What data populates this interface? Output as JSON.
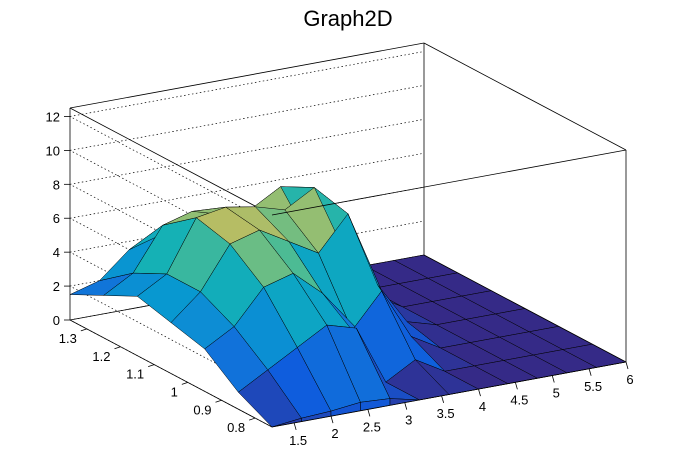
{
  "chart_data": {
    "type": "surface",
    "title": "Graph2D",
    "x_axis": {
      "range": [
        1.2,
        6.0
      ],
      "ticks": [
        "1.5",
        "2",
        "2.5",
        "3",
        "3.5",
        "4",
        "4.5",
        "5",
        "5.5",
        "6"
      ]
    },
    "y_axis": {
      "range": [
        0.75,
        1.35
      ],
      "ticks": [
        "0.8",
        "0.9",
        "1",
        "1.1",
        "1.2",
        "1.3"
      ]
    },
    "z_axis": {
      "range": [
        0,
        12.5
      ],
      "ticks": [
        "0",
        "2",
        "4",
        "6",
        "8",
        "10",
        "12"
      ]
    },
    "grid": true,
    "colormap": "parula",
    "surface_description_values": {
      "x_grid": [
        1.2,
        1.6,
        2.0,
        2.4,
        2.8,
        3.2,
        3.6,
        4.0,
        4.4,
        4.8,
        5.2,
        5.6,
        6.0
      ],
      "y_grid": [
        0.75,
        0.85,
        0.95,
        1.05,
        1.15,
        1.25,
        1.35
      ],
      "z": [
        [
          0.0,
          0.2,
          0.3,
          0.5,
          0.4,
          0.0,
          0.0,
          0.0,
          0.0,
          0.0,
          0.0,
          0.0,
          0.0
        ],
        [
          1.0,
          2.0,
          3.0,
          4.0,
          3.5,
          0.0,
          1.0,
          0.0,
          0.0,
          0.0,
          0.0,
          0.0,
          0.0
        ],
        [
          2.5,
          3.5,
          5.5,
          6.0,
          4.5,
          2.0,
          4.0,
          1.0,
          0.0,
          0.0,
          0.0,
          0.0,
          0.0
        ],
        [
          3.0,
          4.5,
          7.0,
          7.5,
          6.5,
          5.5,
          7.5,
          3.0,
          0.5,
          0.0,
          0.0,
          0.0,
          0.0
        ],
        [
          3.5,
          4.5,
          7.5,
          7.8,
          7.5,
          7.0,
          8.0,
          4.0,
          1.0,
          0.0,
          0.0,
          0.0,
          0.0
        ],
        [
          2.5,
          3.5,
          6.0,
          6.5,
          6.0,
          6.0,
          7.0,
          3.5,
          0.5,
          0.0,
          0.0,
          0.0,
          0.0
        ],
        [
          1.5,
          2.0,
          3.5,
          4.0,
          3.5,
          3.5,
          4.0,
          2.0,
          0.0,
          0.0,
          0.0,
          0.0,
          0.0
        ]
      ]
    }
  }
}
